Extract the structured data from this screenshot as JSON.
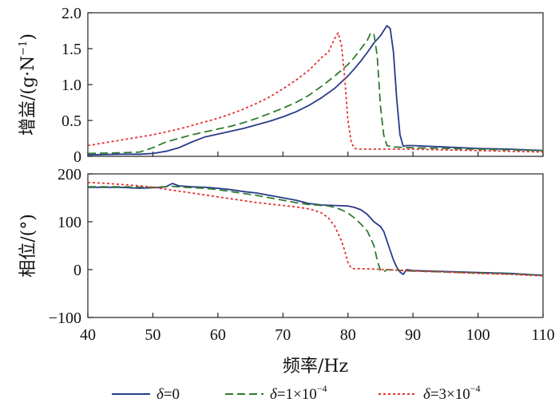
{
  "chart_data": {
    "type": "line",
    "xlabel": "频率/Hz",
    "x_ticks": [
      "40",
      "50",
      "60",
      "70",
      "80",
      "90",
      "100",
      "110"
    ],
    "xlim": [
      40,
      110
    ],
    "series_styles": [
      {
        "name": "δ=0",
        "name_prefix": "δ",
        "name_rest": "=0",
        "color": "#2a3a8a",
        "dash": "solid"
      },
      {
        "name": "δ=1×10⁻⁴",
        "name_prefix": "δ",
        "name_rest": "=1×10",
        "name_exp": "−4",
        "color": "#2f7a2f",
        "dash": "dashed"
      },
      {
        "name": "δ=3×10⁻⁴",
        "name_prefix": "δ",
        "name_rest": "=3×10",
        "name_exp": "−4",
        "color": "#e53030",
        "dash": "dotted"
      }
    ],
    "panels": [
      {
        "id": "gain",
        "ylabel_main": "增益/(g·N",
        "ylabel_exp": "−1",
        "ylabel_end": ")",
        "ylim": [
          0,
          2.0
        ],
        "y_ticks": [
          "0",
          "0.5",
          "1.0",
          "1.5",
          "2.0"
        ],
        "series": [
          {
            "name": "δ=0",
            "points": [
              [
                40,
                0.02
              ],
              [
                45,
                0.03
              ],
              [
                48,
                0.03
              ],
              [
                50,
                0.04
              ],
              [
                52,
                0.07
              ],
              [
                54,
                0.12
              ],
              [
                56,
                0.2
              ],
              [
                58,
                0.27
              ],
              [
                60,
                0.31
              ],
              [
                62,
                0.35
              ],
              [
                64,
                0.39
              ],
              [
                66,
                0.44
              ],
              [
                68,
                0.49
              ],
              [
                70,
                0.55
              ],
              [
                72,
                0.62
              ],
              [
                74,
                0.71
              ],
              [
                76,
                0.82
              ],
              [
                78,
                0.95
              ],
              [
                80,
                1.12
              ],
              [
                81,
                1.22
              ],
              [
                82,
                1.33
              ],
              [
                83,
                1.45
              ],
              [
                84,
                1.58
              ],
              [
                85,
                1.68
              ],
              [
                85.5,
                1.75
              ],
              [
                86,
                1.82
              ],
              [
                86.5,
                1.78
              ],
              [
                87,
                1.45
              ],
              [
                87.5,
                0.8
              ],
              [
                88,
                0.3
              ],
              [
                88.5,
                0.14
              ],
              [
                89,
                0.15
              ],
              [
                90,
                0.15
              ],
              [
                95,
                0.13
              ],
              [
                100,
                0.11
              ],
              [
                105,
                0.1
              ],
              [
                110,
                0.08
              ]
            ]
          },
          {
            "name": "δ=1×10⁻⁴",
            "points": [
              [
                40,
                0.04
              ],
              [
                45,
                0.05
              ],
              [
                48,
                0.06
              ],
              [
                50,
                0.12
              ],
              [
                52,
                0.2
              ],
              [
                54,
                0.25
              ],
              [
                56,
                0.3
              ],
              [
                58,
                0.34
              ],
              [
                60,
                0.38
              ],
              [
                62,
                0.42
              ],
              [
                64,
                0.47
              ],
              [
                66,
                0.53
              ],
              [
                68,
                0.6
              ],
              [
                70,
                0.67
              ],
              [
                72,
                0.75
              ],
              [
                74,
                0.85
              ],
              [
                76,
                0.98
              ],
              [
                78,
                1.12
              ],
              [
                80,
                1.28
              ],
              [
                81,
                1.38
              ],
              [
                82,
                1.5
              ],
              [
                83,
                1.62
              ],
              [
                83.5,
                1.72
              ],
              [
                84,
                1.7
              ],
              [
                84.5,
                1.4
              ],
              [
                85,
                0.7
              ],
              [
                85.5,
                0.3
              ],
              [
                86,
                0.15
              ],
              [
                87,
                0.13
              ],
              [
                90,
                0.12
              ],
              [
                95,
                0.11
              ],
              [
                100,
                0.1
              ],
              [
                105,
                0.09
              ],
              [
                110,
                0.08
              ]
            ]
          },
          {
            "name": "δ=3×10⁻⁴",
            "points": [
              [
                40,
                0.15
              ],
              [
                42,
                0.18
              ],
              [
                44,
                0.21
              ],
              [
                46,
                0.24
              ],
              [
                48,
                0.27
              ],
              [
                50,
                0.3
              ],
              [
                52,
                0.34
              ],
              [
                54,
                0.38
              ],
              [
                56,
                0.43
              ],
              [
                58,
                0.48
              ],
              [
                60,
                0.53
              ],
              [
                62,
                0.59
              ],
              [
                64,
                0.66
              ],
              [
                66,
                0.74
              ],
              [
                68,
                0.83
              ],
              [
                70,
                0.94
              ],
              [
                72,
                1.06
              ],
              [
                74,
                1.2
              ],
              [
                76,
                1.38
              ],
              [
                77,
                1.45
              ],
              [
                77.5,
                1.55
              ],
              [
                78,
                1.65
              ],
              [
                78.5,
                1.72
              ],
              [
                79,
                1.55
              ],
              [
                79.5,
                1.1
              ],
              [
                80,
                0.5
              ],
              [
                80.5,
                0.2
              ],
              [
                81,
                0.11
              ],
              [
                82,
                0.1
              ],
              [
                85,
                0.1
              ],
              [
                90,
                0.1
              ],
              [
                95,
                0.09
              ],
              [
                100,
                0.08
              ],
              [
                105,
                0.07
              ],
              [
                110,
                0.06
              ]
            ]
          }
        ]
      },
      {
        "id": "phase",
        "ylabel_main": "相位/(°)",
        "ylim": [
          -100,
          200
        ],
        "y_ticks": [
          "−100",
          "0",
          "100",
          "200"
        ],
        "series": [
          {
            "name": "δ=0",
            "points": [
              [
                40,
                172
              ],
              [
                45,
                172
              ],
              [
                48,
                170
              ],
              [
                50,
                171
              ],
              [
                52,
                173
              ],
              [
                53,
                180
              ],
              [
                54,
                175
              ],
              [
                56,
                173
              ],
              [
                58,
                172
              ],
              [
                60,
                170
              ],
              [
                62,
                167
              ],
              [
                64,
                163
              ],
              [
                66,
                160
              ],
              [
                68,
                155
              ],
              [
                70,
                150
              ],
              [
                72,
                145
              ],
              [
                74,
                138
              ],
              [
                76,
                135
              ],
              [
                78,
                134
              ],
              [
                80,
                133
              ],
              [
                81,
                130
              ],
              [
                82,
                125
              ],
              [
                83,
                115
              ],
              [
                84,
                100
              ],
              [
                85,
                90
              ],
              [
                85.5,
                80
              ],
              [
                86,
                60
              ],
              [
                86.5,
                40
              ],
              [
                87,
                20
              ],
              [
                87.5,
                5
              ],
              [
                88,
                -5
              ],
              [
                88.5,
                -10
              ],
              [
                89,
                0
              ],
              [
                90,
                -2
              ],
              [
                95,
                -4
              ],
              [
                100,
                -6
              ],
              [
                105,
                -8
              ],
              [
                110,
                -12
              ]
            ]
          },
          {
            "name": "δ=1×10⁻⁴",
            "points": [
              [
                40,
                173
              ],
              [
                45,
                173
              ],
              [
                50,
                172
              ],
              [
                53,
                174
              ],
              [
                55,
                172
              ],
              [
                58,
                170
              ],
              [
                60,
                167
              ],
              [
                62,
                163
              ],
              [
                64,
                159
              ],
              [
                66,
                155
              ],
              [
                68,
                150
              ],
              [
                70,
                145
              ],
              [
                72,
                140
              ],
              [
                74,
                136
              ],
              [
                76,
                134
              ],
              [
                77,
                133
              ],
              [
                78,
                130
              ],
              [
                79,
                125
              ],
              [
                80,
                118
              ],
              [
                81,
                108
              ],
              [
                82,
                95
              ],
              [
                83,
                80
              ],
              [
                84,
                50
              ],
              [
                84.5,
                20
              ],
              [
                85,
                -2
              ],
              [
                85.5,
                -5
              ],
              [
                86,
                0
              ],
              [
                87,
                -1
              ],
              [
                90,
                -3
              ],
              [
                95,
                -5
              ],
              [
                100,
                -7
              ],
              [
                105,
                -9
              ],
              [
                110,
                -12
              ]
            ]
          },
          {
            "name": "δ=3×10⁻⁴",
            "points": [
              [
                40,
                182
              ],
              [
                42,
                181
              ],
              [
                44,
                179
              ],
              [
                46,
                177
              ],
              [
                48,
                175
              ],
              [
                50,
                172
              ],
              [
                52,
                168
              ],
              [
                54,
                164
              ],
              [
                56,
                160
              ],
              [
                58,
                156
              ],
              [
                60,
                152
              ],
              [
                62,
                148
              ],
              [
                64,
                144
              ],
              [
                66,
                140
              ],
              [
                68,
                137
              ],
              [
                70,
                134
              ],
              [
                72,
                131
              ],
              [
                74,
                127
              ],
              [
                75,
                123
              ],
              [
                76,
                118
              ],
              [
                77,
                108
              ],
              [
                78,
                90
              ],
              [
                79,
                60
              ],
              [
                79.5,
                40
              ],
              [
                80,
                15
              ],
              [
                80.5,
                3
              ],
              [
                81,
                2
              ],
              [
                82,
                2
              ],
              [
                84,
                1
              ],
              [
                86,
                0
              ],
              [
                90,
                -3
              ],
              [
                95,
                -5
              ],
              [
                100,
                -8
              ],
              [
                105,
                -10
              ],
              [
                110,
                -13
              ]
            ]
          }
        ]
      }
    ]
  }
}
